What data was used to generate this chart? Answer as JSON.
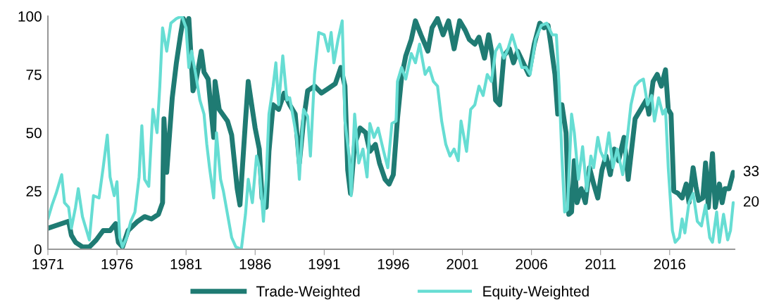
{
  "chart_data": {
    "type": "line",
    "series": [
      {
        "name": "Trade-Weighted",
        "color": "#1f7b73",
        "x": [
          1971,
          1972.5,
          1972.7,
          1973,
          1973.5,
          1974,
          1974.5,
          1975,
          1975.5,
          1975.9,
          1976.1,
          1976.4,
          1976.8,
          1977.5,
          1978,
          1978.5,
          1979,
          1979.3,
          1979.4,
          1979.6,
          1980,
          1980.3,
          1980.6,
          1980.8,
          1981,
          1981.2,
          1981.5,
          1981.7,
          1981.9,
          1982.1,
          1982.3,
          1982.6,
          1983,
          1983.1,
          1983.4,
          1984,
          1984.3,
          1984.7,
          1984.9,
          1985.3,
          1985.5,
          1985.8,
          1986,
          1986.3,
          1986.5,
          1986.8,
          1987,
          1987.3,
          1987.7,
          1988.1,
          1988.5,
          1988.9,
          1989.2,
          1989.5,
          1989.8,
          1990.3,
          1990.8,
          1991.3,
          1991.8,
          1992.2,
          1992.5,
          1992.7,
          1992.9,
          1993.2,
          1993.6,
          1994,
          1994.3,
          1994.7,
          1995,
          1995.4,
          1995.7,
          1996,
          1996.3,
          1996.6,
          1996.9,
          1997.3,
          1997.6,
          1998,
          1998.5,
          1998.8,
          1999.2,
          1999.6,
          2000,
          2000.4,
          2000.8,
          2001.2,
          2001.5,
          2001.9,
          2002.2,
          2002.6,
          2002.9,
          2003.2,
          2003.4,
          2003.7,
          2004,
          2004.4,
          2004.7,
          2005,
          2005.4,
          2005.8,
          2006.2,
          2006.6,
          2006.9,
          2007.2,
          2007.4,
          2007.7,
          2007.9,
          2008.2,
          2008.5,
          2008.7,
          2008.9,
          2009.1,
          2009.3,
          2009.6,
          2009.9,
          2010.2,
          2010.5,
          2010.8,
          2011.1,
          2011.4,
          2011.7,
          2012,
          2012.3,
          2012.7,
          2013,
          2013.5,
          2013.9,
          2014.3,
          2014.5,
          2014.8,
          2015.1,
          2015.4,
          2015.7,
          2015.9,
          2016.1,
          2016.3,
          2016.6,
          2016.9,
          2017.2,
          2017.4,
          2017.7,
          2017.9,
          2018.1,
          2018.4,
          2018.6,
          2018.8,
          2019.1,
          2019.3,
          2019.6,
          2019.8,
          2020,
          2020.3,
          2020.6
        ],
        "values": [
          9,
          12,
          6,
          3,
          1,
          1,
          4,
          8,
          8,
          11,
          3,
          1,
          8,
          12,
          14,
          13,
          15,
          20,
          56,
          33,
          65,
          80,
          92,
          99,
          96,
          99,
          68,
          72,
          78,
          85,
          76,
          73,
          48,
          72,
          60,
          55,
          49,
          26,
          19,
          55,
          72,
          60,
          52,
          43,
          22,
          18,
          42,
          62,
          60,
          67,
          62,
          58,
          37,
          55,
          68,
          70,
          67,
          69,
          71,
          78,
          70,
          34,
          24,
          45,
          52,
          50,
          42,
          45,
          37,
          30,
          28,
          32,
          56,
          74,
          83,
          90,
          98,
          92,
          85,
          95,
          99,
          92,
          98,
          86,
          98,
          94,
          90,
          88,
          91,
          82,
          92,
          82,
          64,
          62,
          83,
          86,
          80,
          85,
          80,
          75,
          88,
          97,
          95,
          96,
          88,
          75,
          58,
          62,
          50,
          15,
          16,
          38,
          20,
          26,
          20,
          35,
          28,
          22,
          34,
          40,
          32,
          43,
          38,
          48,
          30,
          56,
          60,
          64,
          58,
          72,
          75,
          70,
          77,
          60,
          58,
          25,
          24,
          22,
          28,
          20,
          35,
          27,
          21,
          22,
          37,
          18,
          41,
          18,
          28,
          20,
          26,
          26,
          33
        ]
      },
      {
        "name": "Equity-Weighted",
        "color": "#66ddd3",
        "x": [
          1971,
          1971.3,
          1971.6,
          1972,
          1972.2,
          1972.5,
          1972.7,
          1973,
          1973.2,
          1973.5,
          1973.8,
          1974,
          1974.3,
          1974.7,
          1975,
          1975.3,
          1975.5,
          1975.8,
          1976,
          1976.2,
          1976.4,
          1976.7,
          1977,
          1977.3,
          1977.6,
          1977.8,
          1978,
          1978.3,
          1978.6,
          1978.9,
          1979.1,
          1979.3,
          1979.6,
          1979.9,
          1980.3,
          1980.7,
          1981,
          1981.2,
          1981.4,
          1981.7,
          1982,
          1982.3,
          1982.5,
          1982.7,
          1983,
          1983.2,
          1983.5,
          1983.7,
          1984,
          1984.3,
          1984.6,
          1985,
          1985.3,
          1985.5,
          1985.8,
          1986.1,
          1986.3,
          1986.6,
          1986.8,
          1987,
          1987.3,
          1987.5,
          1987.7,
          1988,
          1988.3,
          1988.5,
          1988.8,
          1989,
          1989.2,
          1989.5,
          1989.8,
          1990,
          1990.3,
          1990.6,
          1991,
          1991.3,
          1991.5,
          1991.7,
          1992,
          1992.3,
          1992.5,
          1992.8,
          1992.95,
          1993.2,
          1993.5,
          1993.8,
          1994.1,
          1994.3,
          1994.6,
          1994.9,
          1995.3,
          1995.6,
          1995.9,
          1996.2,
          1996.3,
          1996.6,
          1996.9,
          1997.3,
          1997.6,
          1997.9,
          1998.3,
          1998.6,
          1998.9,
          1999.2,
          1999.5,
          1999.8,
          2000.1,
          2000.4,
          2000.7,
          2000.9,
          2001.3,
          2001.6,
          2001.9,
          2002.2,
          2002.5,
          2002.8,
          2003.1,
          2003.4,
          2003.7,
          2004,
          2004.3,
          2004.6,
          2005,
          2005.3,
          2005.6,
          2005.9,
          2006.3,
          2006.7,
          2007.1,
          2007.5,
          2007.8,
          2008,
          2008.2,
          2008.4,
          2008.6,
          2008.9,
          2009.1,
          2009.4,
          2009.7,
          2010,
          2010.3,
          2010.5,
          2010.8,
          2011,
          2011.3,
          2011.6,
          2011.9,
          2012.2,
          2012.6,
          2012.9,
          2013.2,
          2013.5,
          2013.8,
          2014.1,
          2014.4,
          2014.7,
          2014.9,
          2015.2,
          2015.5,
          2015.7,
          2015.9,
          2016.2,
          2016.4,
          2016.7,
          2016.9,
          2017.1,
          2017.4,
          2017.7,
          2018,
          2018.3,
          2018.6,
          2018.9,
          2019.1,
          2019.4,
          2019.6,
          2019.9,
          2020.2,
          2020.4,
          2020.6
        ],
        "values": [
          13,
          19,
          24,
          32,
          20,
          18,
          9,
          18,
          26,
          14,
          8,
          4,
          23,
          22,
          35,
          49,
          31,
          23,
          29,
          5,
          1,
          5,
          12,
          16,
          31,
          53,
          30,
          27,
          60,
          50,
          70,
          95,
          85,
          97,
          99,
          100,
          95,
          78,
          85,
          75,
          64,
          58,
          45,
          35,
          22,
          50,
          30,
          25,
          15,
          5,
          1,
          0,
          15,
          30,
          20,
          40,
          35,
          12,
          30,
          58,
          70,
          80,
          62,
          83,
          64,
          65,
          55,
          48,
          30,
          60,
          57,
          40,
          75,
          93,
          92,
          85,
          93,
          80,
          90,
          98,
          55,
          40,
          23,
          58,
          37,
          43,
          31,
          54,
          48,
          52,
          42,
          35,
          54,
          55,
          72,
          78,
          73,
          84,
          80,
          88,
          75,
          78,
          72,
          70,
          55,
          45,
          40,
          43,
          38,
          55,
          42,
          60,
          62,
          70,
          66,
          75,
          72,
          85,
          88,
          82,
          86,
          92,
          84,
          78,
          78,
          75,
          90,
          96,
          97,
          92,
          92,
          70,
          40,
          16,
          17,
          58,
          50,
          30,
          44,
          25,
          40,
          35,
          48,
          42,
          38,
          50,
          35,
          43,
          32,
          46,
          62,
          70,
          72,
          73,
          62,
          66,
          55,
          65,
          58,
          60,
          35,
          8,
          3,
          5,
          13,
          7,
          20,
          24,
          12,
          10,
          19,
          5,
          3,
          16,
          3,
          15,
          4,
          8,
          20
        ]
      }
    ],
    "xlim": [
      1971,
      2020.7
    ],
    "xticks": [
      1971,
      1976,
      1981,
      1986,
      1991,
      1996,
      2001,
      2006,
      2011,
      2016
    ],
    "ylim": [
      0,
      100
    ],
    "yticks": [
      0,
      25,
      50,
      75,
      100
    ],
    "annotations": [
      {
        "text": "33",
        "x": 2020.6,
        "y": 33
      },
      {
        "text": "20",
        "x": 2020.6,
        "y": 20
      }
    ],
    "legend": "bottom",
    "grid": false
  }
}
